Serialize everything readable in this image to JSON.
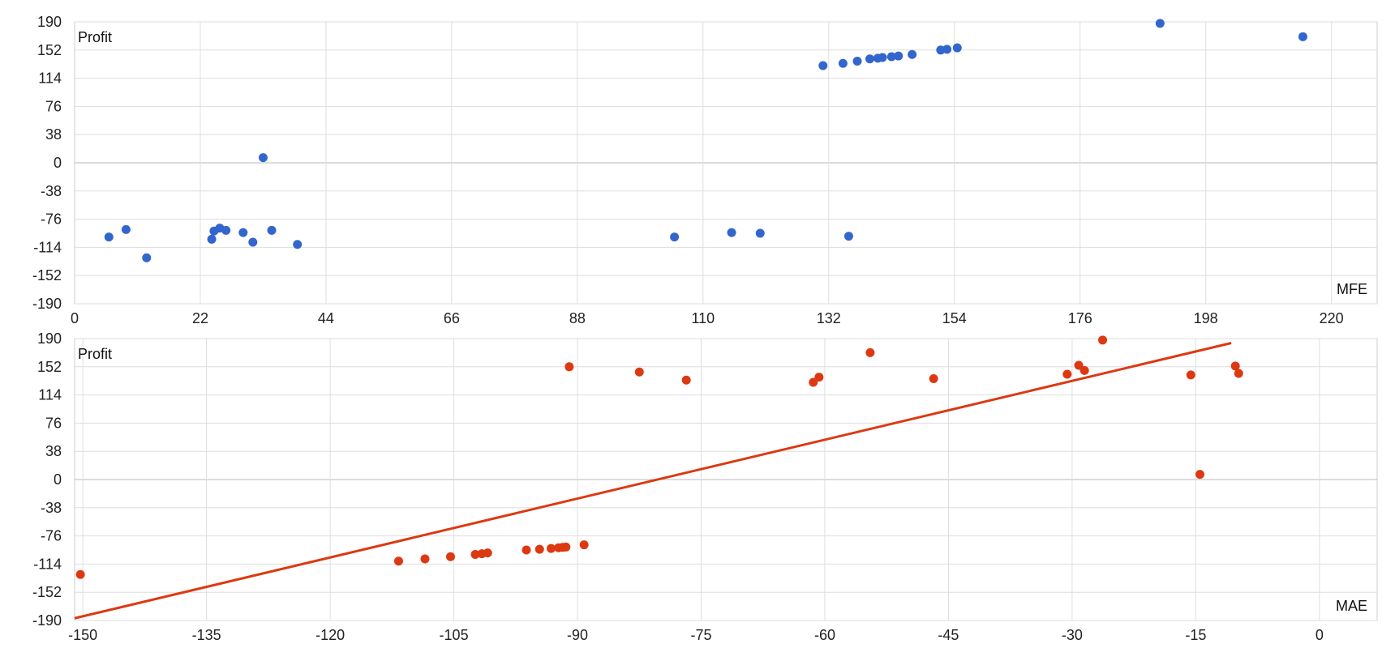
{
  "chart_data": [
    {
      "type": "scatter",
      "xlabel": "MFE",
      "ylabel": "Profit",
      "xlim": [
        0,
        228
      ],
      "ylim": [
        -190,
        190
      ],
      "xticks": [
        0,
        22,
        44,
        66,
        88,
        110,
        132,
        154,
        176,
        198,
        220
      ],
      "yticks": [
        190,
        152,
        114,
        76,
        38,
        0,
        -38,
        -76,
        -114,
        -152,
        -190
      ],
      "grid": true,
      "color": "#3366cc",
      "points": [
        {
          "x": 6,
          "y": -100
        },
        {
          "x": 9,
          "y": -90
        },
        {
          "x": 12.6,
          "y": -128
        },
        {
          "x": 24,
          "y": -103
        },
        {
          "x": 24.4,
          "y": -92
        },
        {
          "x": 25.4,
          "y": -88
        },
        {
          "x": 26.5,
          "y": -91
        },
        {
          "x": 29.5,
          "y": -94
        },
        {
          "x": 31.2,
          "y": -107
        },
        {
          "x": 33,
          "y": 7
        },
        {
          "x": 34.5,
          "y": -91
        },
        {
          "x": 39,
          "y": -110
        },
        {
          "x": 105,
          "y": -100
        },
        {
          "x": 115,
          "y": -94
        },
        {
          "x": 120,
          "y": -95
        },
        {
          "x": 135.5,
          "y": -99
        },
        {
          "x": 131,
          "y": 131
        },
        {
          "x": 134.5,
          "y": 134
        },
        {
          "x": 137,
          "y": 137
        },
        {
          "x": 139.2,
          "y": 140
        },
        {
          "x": 140.6,
          "y": 141
        },
        {
          "x": 141.4,
          "y": 142
        },
        {
          "x": 143,
          "y": 143
        },
        {
          "x": 144.2,
          "y": 144
        },
        {
          "x": 146.6,
          "y": 146
        },
        {
          "x": 151.6,
          "y": 152
        },
        {
          "x": 152.7,
          "y": 153
        },
        {
          "x": 154.5,
          "y": 155
        },
        {
          "x": 190,
          "y": 188
        },
        {
          "x": 215,
          "y": 170
        }
      ]
    },
    {
      "type": "scatter",
      "xlabel": "MAE",
      "ylabel": "Profit",
      "xlim": [
        -151,
        7
      ],
      "ylim": [
        -190,
        190
      ],
      "xticks": [
        -150,
        -135,
        -120,
        -105,
        -90,
        -75,
        -60,
        -45,
        -30,
        -15,
        0
      ],
      "yticks": [
        190,
        152,
        114,
        76,
        38,
        0,
        -38,
        -76,
        -114,
        -152,
        -190
      ],
      "grid": true,
      "color": "#dc3912",
      "points": [
        {
          "x": -150.3,
          "y": -128
        },
        {
          "x": -111.7,
          "y": -110
        },
        {
          "x": -108.5,
          "y": -107
        },
        {
          "x": -105.4,
          "y": -104
        },
        {
          "x": -102.4,
          "y": -101
        },
        {
          "x": -101.6,
          "y": -100
        },
        {
          "x": -100.9,
          "y": -99
        },
        {
          "x": -96.2,
          "y": -95
        },
        {
          "x": -94.6,
          "y": -94
        },
        {
          "x": -93.2,
          "y": -93
        },
        {
          "x": -92.3,
          "y": -92
        },
        {
          "x": -91.8,
          "y": -91.5
        },
        {
          "x": -91.4,
          "y": -91
        },
        {
          "x": -89.2,
          "y": -88
        },
        {
          "x": -91,
          "y": 152
        },
        {
          "x": -82.5,
          "y": 145
        },
        {
          "x": -76.8,
          "y": 134
        },
        {
          "x": -61.4,
          "y": 131
        },
        {
          "x": -60.7,
          "y": 138
        },
        {
          "x": -54.5,
          "y": 171
        },
        {
          "x": -46.8,
          "y": 136
        },
        {
          "x": -30.6,
          "y": 142
        },
        {
          "x": -29.2,
          "y": 154
        },
        {
          "x": -28.5,
          "y": 147
        },
        {
          "x": -26.3,
          "y": 188
        },
        {
          "x": -15.6,
          "y": 141
        },
        {
          "x": -14.5,
          "y": 7
        },
        {
          "x": -10.2,
          "y": 153
        },
        {
          "x": -9.8,
          "y": 143
        }
      ],
      "trendline": {
        "x": [
          -151,
          -10.7
        ],
        "y": [
          -187,
          184
        ]
      }
    }
  ]
}
